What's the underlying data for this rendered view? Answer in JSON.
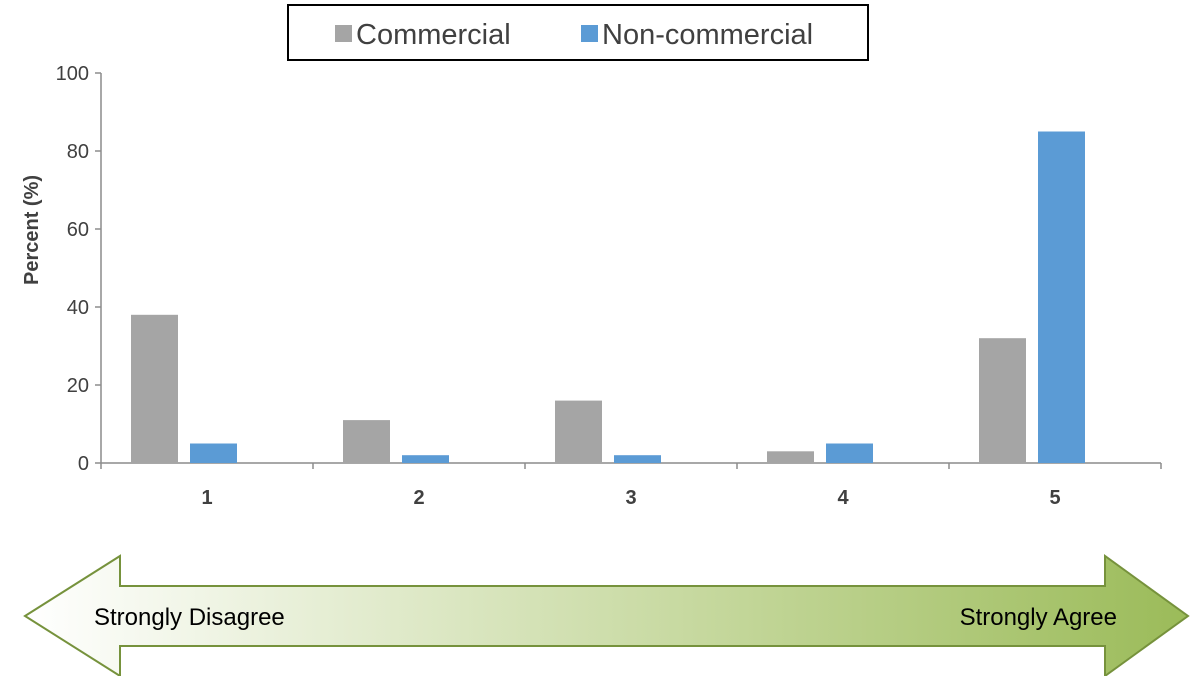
{
  "chart_data": {
    "type": "bar",
    "categories": [
      "1",
      "2",
      "3",
      "4",
      "5"
    ],
    "series": [
      {
        "name": "Commercial",
        "values": [
          38,
          11,
          16,
          3,
          32
        ],
        "color": "#a5a5a5"
      },
      {
        "name": "Non-commercial",
        "values": [
          5,
          2,
          2,
          5,
          85
        ],
        "color": "#5b9bd5"
      }
    ],
    "ylabel": "Percent (%)",
    "xlabel": "",
    "ylim": [
      0,
      100
    ],
    "yticks": [
      0,
      20,
      40,
      60,
      80,
      100
    ],
    "grid": false,
    "legend_position": "top"
  },
  "scale_arrow": {
    "left_label": "Strongly Disagree",
    "right_label": "Strongly Agree",
    "gradient_colors": [
      "#ffffff",
      "#c4d79b",
      "#9bbb59"
    ],
    "stroke_color": "#76923c"
  }
}
